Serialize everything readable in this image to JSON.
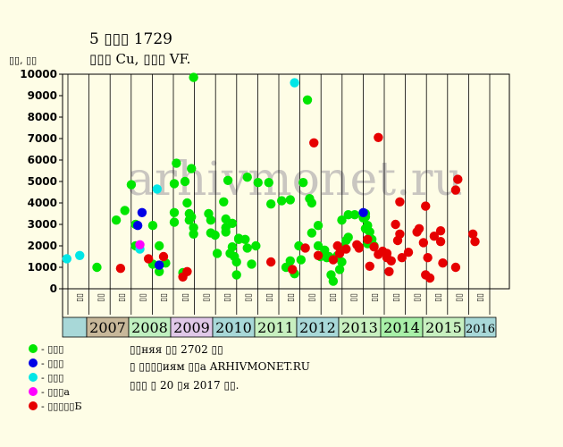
{
  "title_line1": "5 ▯▯▯ 1729",
  "title_line2": "▯▯▯ Cu, ▯▯▯ VF.",
  "y_unit": "▯▯, ▯▯",
  "watermark": "arhivmonet.ru",
  "legend": [
    {
      "label": "- ▯▯▯",
      "color": "#00e600"
    },
    {
      "label": "- ▯▯▯",
      "color": "#0000e6"
    },
    {
      "label": "- ▯▯▯",
      "color": "#00e6e6"
    },
    {
      "label": "- ▯▯▯а",
      "color": "#ff00ff"
    },
    {
      "label": "- ▯▯▯▯▯Б",
      "color": "#e60000"
    }
  ],
  "footer": {
    "line1": "▯▯няя ▯▯ 2702 ▯▯",
    "line2": "▯ ▯▯▯▯иям ▯▯а ARHIVMONET.RU",
    "line3": "▯▯▯ ▯ 20 ▯я 2017 ▯▯."
  },
  "chart_data": {
    "type": "scatter",
    "ylim": [
      0,
      10000
    ],
    "yticks": [
      0,
      1000,
      2000,
      3000,
      4000,
      5000,
      6000,
      7000,
      8000,
      9000,
      10000
    ],
    "grid": "vertical lines at half-years",
    "half_year_labels": [
      "▯▯",
      "▯▯",
      "▯▯",
      "▯▯",
      "▯▯",
      "▯▯",
      "▯▯",
      "▯▯",
      "▯▯",
      "▯▯",
      "▯▯",
      "▯▯",
      "▯▯",
      "▯▯",
      "▯▯",
      "▯▯",
      "▯▯",
      "▯▯",
      "▯▯",
      "▯▯"
    ],
    "years": [
      {
        "label": "",
        "color": "#a8d8d8"
      },
      {
        "label": "2007",
        "color": "#c8b89a"
      },
      {
        "label": "2008",
        "color": "#c0f0c0"
      },
      {
        "label": "2009",
        "color": "#e0c8e8"
      },
      {
        "label": "2010",
        "color": "#a8d8d8"
      },
      {
        "label": "2011",
        "color": "#c8f0c0"
      },
      {
        "label": "2012",
        "color": "#a8d8d8"
      },
      {
        "label": "2013",
        "color": "#c8f0c0"
      },
      {
        "label": "2014",
        "color": "#a8f0a8"
      },
      {
        "label": "2015",
        "color": "#c8f0c0"
      },
      {
        "label": "2016",
        "color": "#a8d8d8"
      }
    ],
    "x_range": [
      2006.5,
      2016.9
    ],
    "series": [
      {
        "name": "- ▯▯▯",
        "color": "#00e600",
        "points": [
          [
            2007.3,
            1000
          ],
          [
            2007.75,
            3200
          ],
          [
            2007.95,
            3650
          ],
          [
            2008.1,
            4850
          ],
          [
            2008.2,
            3000
          ],
          [
            2008.2,
            2000
          ],
          [
            2008.6,
            2950
          ],
          [
            2008.6,
            1150
          ],
          [
            2008.75,
            800
          ],
          [
            2008.75,
            2000
          ],
          [
            2008.75,
            1100
          ],
          [
            2008.9,
            1200
          ],
          [
            2009.1,
            3550
          ],
          [
            2009.1,
            3100
          ],
          [
            2009.15,
            5850
          ],
          [
            2009.1,
            4900
          ],
          [
            2009.3,
            750
          ],
          [
            2009.35,
            5000
          ],
          [
            2009.4,
            4000
          ],
          [
            2009.45,
            3200
          ],
          [
            2009.45,
            3500
          ],
          [
            2009.5,
            5600
          ],
          [
            2009.5,
            3350
          ],
          [
            2009.55,
            9850
          ],
          [
            2009.55,
            2850
          ],
          [
            2009.55,
            2550
          ],
          [
            2009.9,
            3500
          ],
          [
            2009.95,
            3200
          ],
          [
            2009.95,
            2600
          ],
          [
            2010.05,
            2500
          ],
          [
            2010.1,
            1650
          ],
          [
            2010.25,
            4050
          ],
          [
            2010.3,
            3250
          ],
          [
            2010.3,
            2850
          ],
          [
            2010.3,
            2650
          ],
          [
            2010.35,
            5050
          ],
          [
            2010.4,
            1650
          ],
          [
            2010.45,
            3050
          ],
          [
            2010.45,
            1950
          ],
          [
            2010.5,
            1500
          ],
          [
            2010.55,
            650
          ],
          [
            2010.55,
            1250
          ],
          [
            2010.6,
            2350
          ],
          [
            2010.6,
            2300
          ],
          [
            2010.75,
            2300
          ],
          [
            2010.8,
            1900
          ],
          [
            2010.8,
            5200
          ],
          [
            2010.9,
            1150
          ],
          [
            2011.0,
            2000
          ],
          [
            2011.05,
            4950
          ],
          [
            2011.3,
            4950
          ],
          [
            2011.35,
            3950
          ],
          [
            2011.6,
            4100
          ],
          [
            2011.7,
            1000
          ],
          [
            2011.8,
            4150
          ],
          [
            2011.8,
            1300
          ],
          [
            2011.9,
            700
          ],
          [
            2012.0,
            2000
          ],
          [
            2012.05,
            1350
          ],
          [
            2012.1,
            4950
          ],
          [
            2012.2,
            8800
          ],
          [
            2012.25,
            4200
          ],
          [
            2012.3,
            2600
          ],
          [
            2012.3,
            4000
          ],
          [
            2012.45,
            2950
          ],
          [
            2012.45,
            2000
          ],
          [
            2012.5,
            1500
          ],
          [
            2012.6,
            1800
          ],
          [
            2012.65,
            1450
          ],
          [
            2012.7,
            1500
          ],
          [
            2012.75,
            650
          ],
          [
            2012.8,
            350
          ],
          [
            2012.9,
            1550
          ],
          [
            2012.95,
            900
          ],
          [
            2013.0,
            3200
          ],
          [
            2013.0,
            1250
          ],
          [
            2013.05,
            1900
          ],
          [
            2013.1,
            2250
          ],
          [
            2013.15,
            3450
          ],
          [
            2013.15,
            2400
          ],
          [
            2013.3,
            3450
          ],
          [
            2013.5,
            3300
          ],
          [
            2013.55,
            3500
          ],
          [
            2013.55,
            3350
          ],
          [
            2013.6,
            2950
          ],
          [
            2013.65,
            2650
          ],
          [
            2013.6,
            2100
          ],
          [
            2013.7,
            2300
          ],
          [
            2013.75,
            2000
          ],
          [
            2013.55,
            2800
          ]
        ]
      },
      {
        "name": "- ▯▯▯",
        "color": "#0000e6",
        "points": [
          [
            2008.35,
            3550
          ],
          [
            2008.25,
            2950
          ],
          [
            2008.75,
            1100
          ],
          [
            2013.5,
            3550
          ]
        ]
      },
      {
        "name": "- ▯▯▯",
        "color": "#00e6e6",
        "points": [
          [
            2006.6,
            1400
          ],
          [
            2006.9,
            1550
          ],
          [
            2008.3,
            1850
          ],
          [
            2008.7,
            4650
          ],
          [
            2011.9,
            9600
          ]
        ]
      },
      {
        "name": "- ▯▯▯а",
        "color": "#ff00ff",
        "points": [
          [
            2008.3,
            2050
          ]
        ]
      },
      {
        "name": "- ▯▯▯▯▯Б",
        "color": "#e60000",
        "points": [
          [
            2007.85,
            950
          ],
          [
            2008.5,
            1400
          ],
          [
            2008.85,
            1500
          ],
          [
            2009.3,
            550
          ],
          [
            2009.4,
            800
          ],
          [
            2011.35,
            1250
          ],
          [
            2011.85,
            900
          ],
          [
            2012.15,
            1900
          ],
          [
            2012.35,
            6800
          ],
          [
            2012.45,
            1550
          ],
          [
            2012.8,
            1350
          ],
          [
            2012.9,
            2000
          ],
          [
            2012.95,
            1650
          ],
          [
            2013.1,
            1850
          ],
          [
            2013.35,
            2050
          ],
          [
            2013.4,
            1950
          ],
          [
            2013.4,
            1900
          ],
          [
            2013.6,
            2300
          ],
          [
            2013.65,
            1050
          ],
          [
            2013.75,
            1950
          ],
          [
            2013.85,
            7050
          ],
          [
            2013.85,
            1600
          ],
          [
            2013.95,
            1750
          ],
          [
            2014.05,
            1450
          ],
          [
            2014.05,
            1650
          ],
          [
            2014.1,
            800
          ],
          [
            2014.15,
            1300
          ],
          [
            2014.25,
            3000
          ],
          [
            2014.3,
            2250
          ],
          [
            2014.35,
            2550
          ],
          [
            2014.35,
            4050
          ],
          [
            2014.4,
            1450
          ],
          [
            2014.55,
            1700
          ],
          [
            2014.75,
            2650
          ],
          [
            2014.8,
            2800
          ],
          [
            2014.9,
            2150
          ],
          [
            2014.95,
            3850
          ],
          [
            2014.95,
            650
          ],
          [
            2015.0,
            1450
          ],
          [
            2015.05,
            500
          ],
          [
            2015.15,
            2450
          ],
          [
            2015.3,
            2200
          ],
          [
            2015.3,
            2700
          ],
          [
            2015.35,
            1200
          ],
          [
            2015.65,
            1000
          ],
          [
            2015.65,
            4600
          ],
          [
            2015.7,
            5100
          ],
          [
            2016.05,
            2550
          ],
          [
            2016.1,
            2200
          ]
        ]
      }
    ]
  }
}
